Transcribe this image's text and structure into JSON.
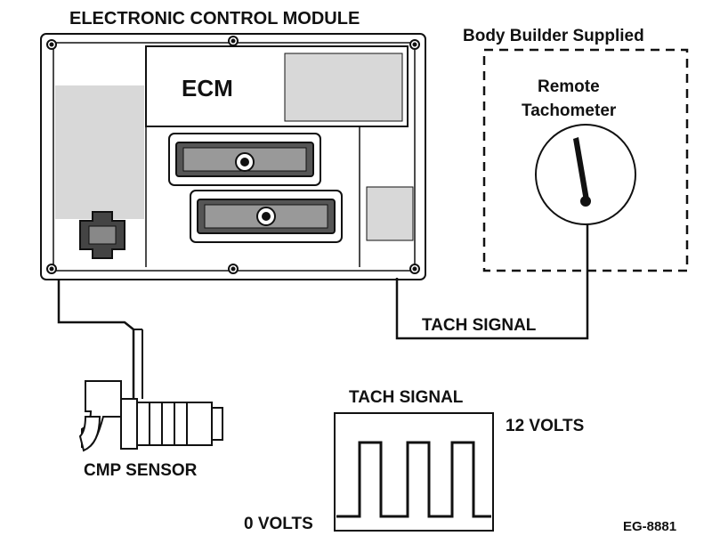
{
  "labels": {
    "module_title": "ELECTRONIC CONTROL MODULE",
    "ecm": "ECM",
    "body_builder": "Body Builder Supplied",
    "remote_line1": "Remote",
    "remote_line2": "Tachometer",
    "tach_signal_wire": "TACH SIGNAL",
    "tach_signal_graph": "TACH SIGNAL",
    "volts_high": "12 VOLTS",
    "volts_low": "0 VOLTS",
    "sensor": "CMP SENSOR",
    "figure_id": "EG-8881"
  },
  "colors": {
    "ink": "#111111",
    "background": "#ffffff"
  },
  "waveform": {
    "high_volts": 12,
    "low_volts": 0,
    "pulses": 3
  }
}
